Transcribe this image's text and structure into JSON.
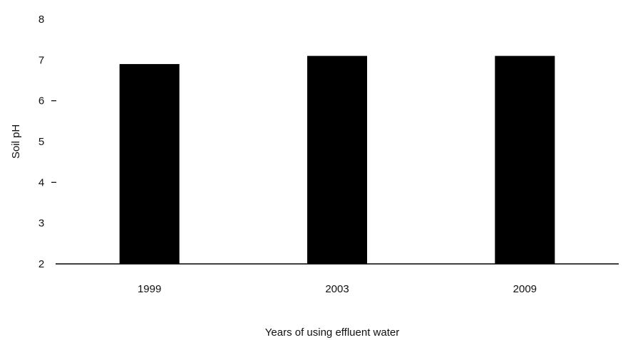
{
  "chart_data": {
    "type": "bar",
    "categories": [
      "1999",
      "2003",
      "2009"
    ],
    "values": [
      6.9,
      7.1,
      7.1
    ],
    "xlabel": "Years of using effluent water",
    "ylabel": "Soil pH",
    "ylim": [
      2,
      8
    ],
    "yticks": [
      "2",
      "3",
      "4",
      "5",
      "6",
      "7",
      "8"
    ],
    "yticks_with_marks": [
      "4",
      "6"
    ],
    "grid": false,
    "legend": "none",
    "bar_color": "#000000"
  }
}
